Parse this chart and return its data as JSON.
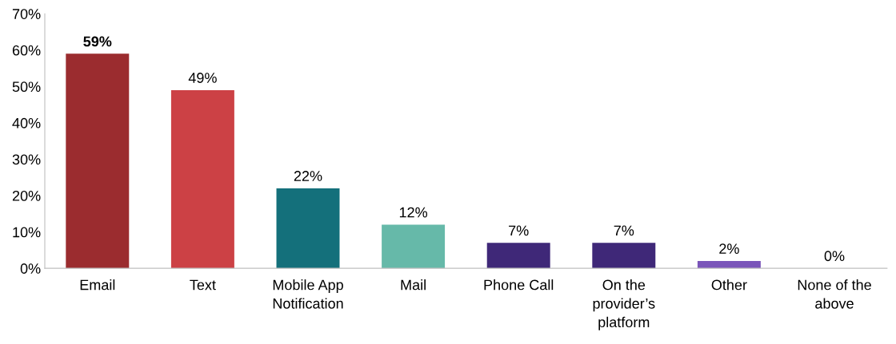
{
  "chart_data": {
    "type": "bar",
    "categories": [
      "Email",
      "Text",
      "Mobile App\nNotification",
      "Mail",
      "Phone Call",
      "On the\nprovider’s\nplatform",
      "Other",
      "None of the\nabove"
    ],
    "values": [
      59,
      49,
      22,
      12,
      7,
      7,
      2,
      0
    ],
    "colors": [
      "#9b2c2f",
      "#cc4145",
      "#14707b",
      "#66b9a9",
      "#3f2878",
      "#3f2878",
      "#7a55b9",
      "#7a55b9"
    ],
    "value_labels": [
      "59%",
      "49%",
      "22%",
      "12%",
      "7%",
      "7%",
      "2%",
      "0%"
    ],
    "ylim": [
      0,
      70
    ],
    "yticks": [
      {
        "value": 0,
        "label": "0%"
      },
      {
        "value": 10,
        "label": "10%"
      },
      {
        "value": 20,
        "label": "20%"
      },
      {
        "value": 30,
        "label": "30%"
      },
      {
        "value": 40,
        "label": "40%"
      },
      {
        "value": 50,
        "label": "50%"
      },
      {
        "value": 60,
        "label": "60%"
      },
      {
        "value": 70,
        "label": "70%"
      }
    ],
    "grid": false,
    "legend": false
  }
}
